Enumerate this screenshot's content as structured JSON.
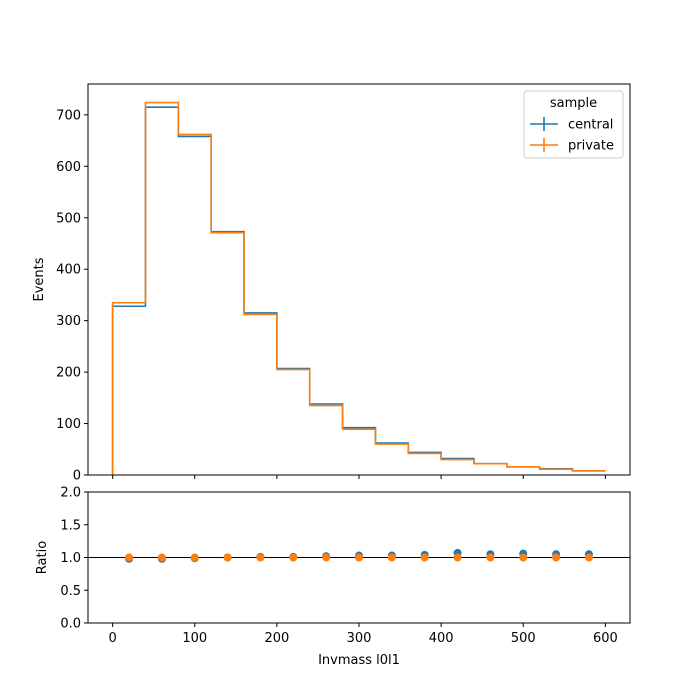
{
  "chart_data": [
    {
      "type": "line",
      "panel": "main",
      "title": "",
      "xlabel": "",
      "ylabel": "Events",
      "xlim": [
        -30,
        630
      ],
      "ylim": [
        0,
        760
      ],
      "xticks": [
        0,
        100,
        200,
        300,
        400,
        500,
        600
      ],
      "yticks": [
        0,
        100,
        200,
        300,
        400,
        500,
        600,
        700
      ],
      "bin_edges": [
        0,
        40,
        80,
        120,
        160,
        200,
        240,
        280,
        320,
        360,
        400,
        440,
        480,
        520,
        560,
        600
      ],
      "legend": {
        "title": "sample",
        "position": "top-right"
      },
      "series": [
        {
          "name": "central",
          "color": "#1f77b4",
          "values": [
            328,
            715,
            658,
            473,
            315,
            207,
            138,
            92,
            62,
            44,
            32,
            22,
            16,
            12,
            8
          ]
        },
        {
          "name": "private",
          "color": "#ff7f0e",
          "values": [
            335,
            724,
            662,
            471,
            312,
            205,
            135,
            89,
            60,
            42,
            30,
            22,
            16,
            11,
            8
          ]
        }
      ]
    },
    {
      "type": "scatter",
      "panel": "ratio",
      "title": "",
      "xlabel": "Invmass l0l1",
      "ylabel": "Ratio",
      "xlim": [
        -30,
        630
      ],
      "ylim": [
        0,
        2
      ],
      "xticks": [
        0,
        100,
        200,
        300,
        400,
        500,
        600
      ],
      "yticks": [
        0.0,
        0.5,
        1.0,
        1.5,
        2.0
      ],
      "reference_line": 1.0,
      "x": [
        20,
        60,
        100,
        140,
        180,
        220,
        260,
        300,
        340,
        380,
        420,
        460,
        500,
        540,
        580
      ],
      "series": [
        {
          "color": "#1f77b4",
          "values": [
            0.98,
            0.98,
            0.99,
            1.0,
            1.01,
            1.01,
            1.02,
            1.03,
            1.03,
            1.04,
            1.07,
            1.05,
            1.06,
            1.05,
            1.05
          ]
        },
        {
          "color": "#ff7f0e",
          "values": [
            1.0,
            1.0,
            1.0,
            1.0,
            1.0,
            1.0,
            1.0,
            1.0,
            1.0,
            1.0,
            1.0,
            1.0,
            1.0,
            1.0,
            1.0
          ]
        }
      ]
    }
  ]
}
